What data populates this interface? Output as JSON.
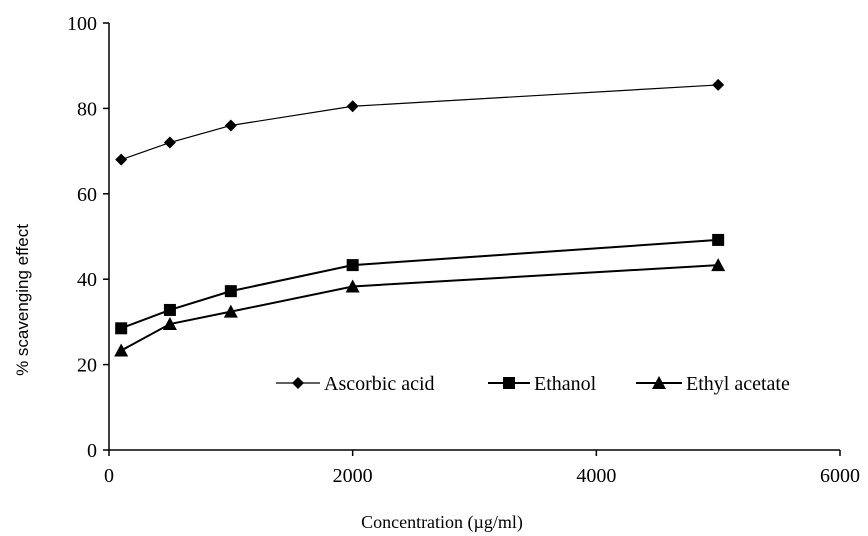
{
  "chart_data": {
    "type": "line",
    "title": "",
    "xlabel": "Concentration (µg/ml)",
    "ylabel": "% scavenging effect",
    "xlim": [
      0,
      6000
    ],
    "ylim": [
      0,
      100
    ],
    "x_ticks": [
      "0",
      "2000",
      "4000",
      "6000"
    ],
    "y_ticks": [
      "0",
      "20",
      "40",
      "60",
      "80",
      "100"
    ],
    "grid": false,
    "legend_position": "inside-bottom",
    "x": [
      100,
      500,
      1000,
      2000,
      5000
    ],
    "series": [
      {
        "name": "Ascorbic acid",
        "marker": "diamond",
        "values": [
          68,
          72,
          76,
          80.5,
          85.5
        ]
      },
      {
        "name": "Ethanol",
        "marker": "square",
        "values": [
          28.5,
          32.8,
          37.2,
          43.3,
          49.2
        ]
      },
      {
        "name": "Ethyl acetate",
        "marker": "triangle",
        "values": [
          23.3,
          29.5,
          32.4,
          38.3,
          43.3
        ]
      }
    ],
    "colors": {
      "line": "#000000",
      "axis": "#000000"
    }
  }
}
